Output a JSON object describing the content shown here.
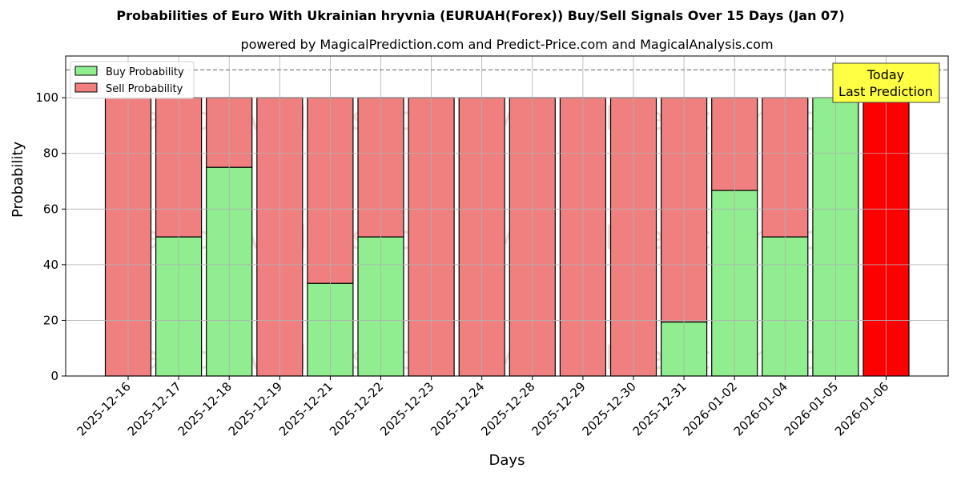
{
  "chart_data": {
    "type": "bar",
    "stacked": true,
    "title": "Probabilities of Euro With Ukrainian hryvnia (EURUAH(Forex)) Buy/Sell Signals Over 15 Days (Jan 07)",
    "subtitle": "powered by MagicalPrediction.com and Predict-Price.com and MagicalAnalysis.com",
    "xlabel": "Days",
    "ylabel": "Probability",
    "ylim": [
      0,
      115
    ],
    "yticks": [
      0,
      20,
      40,
      60,
      80,
      100
    ],
    "grid": true,
    "legend_position": "upper left",
    "categories": [
      "2025-12-16",
      "2025-12-17",
      "2025-12-18",
      "2025-12-19",
      "2025-12-21",
      "2025-12-22",
      "2025-12-23",
      "2025-12-24",
      "2025-12-28",
      "2025-12-29",
      "2025-12-30",
      "2025-12-31",
      "2026-01-02",
      "2026-01-04",
      "2026-01-05",
      "2026-01-06"
    ],
    "series": [
      {
        "name": "Buy Probability",
        "color": "#90ee90",
        "values": [
          0,
          50,
          75,
          0,
          33.3,
          50,
          0,
          0,
          0,
          0,
          0,
          19.4,
          66.7,
          50,
          100,
          0
        ]
      },
      {
        "name": "Sell Probability",
        "color": "#f08080",
        "values": [
          100,
          50,
          25,
          100,
          66.7,
          50,
          100,
          100,
          100,
          100,
          100,
          80.6,
          33.3,
          50,
          0,
          100
        ]
      }
    ],
    "highlight": {
      "index": 15,
      "color": "#ff0000",
      "annotation": [
        "Today",
        "Last Prediction"
      ]
    },
    "reference_line": {
      "y": 110,
      "style": "dashed"
    },
    "watermarks": [
      "MagicalAnalysis.com",
      "MagicalPrediction.com"
    ]
  }
}
